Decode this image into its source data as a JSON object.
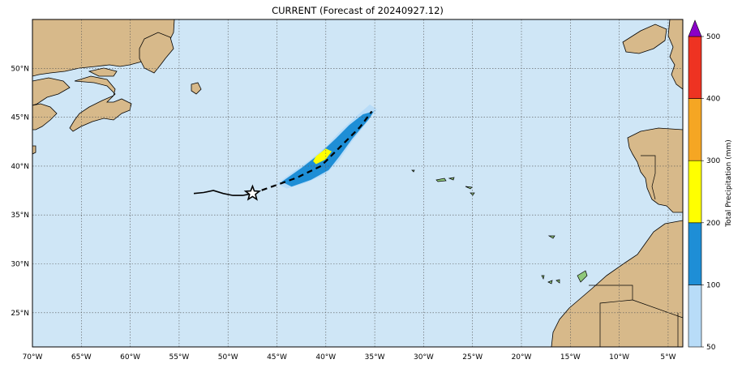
{
  "title": "CURRENT (Forecast of 20240927.12)",
  "map": {
    "lon_range": [
      -70,
      -3.5
    ],
    "lat_range": [
      21.5,
      55
    ],
    "lon_ticks": [
      {
        "value": -70,
        "label": "70°W"
      },
      {
        "value": -65,
        "label": "65°W"
      },
      {
        "value": -60,
        "label": "60°W"
      },
      {
        "value": -55,
        "label": "55°W"
      },
      {
        "value": -50,
        "label": "50°W"
      },
      {
        "value": -45,
        "label": "45°W"
      },
      {
        "value": -40,
        "label": "40°W"
      },
      {
        "value": -35,
        "label": "35°W"
      },
      {
        "value": -30,
        "label": "30°W"
      },
      {
        "value": -25,
        "label": "25°W"
      },
      {
        "value": -20,
        "label": "20°W"
      },
      {
        "value": -15,
        "label": "15°W"
      },
      {
        "value": -10,
        "label": "10°W"
      },
      {
        "value": -5,
        "label": "5°W"
      }
    ],
    "lat_ticks": [
      {
        "value": 25,
        "label": "25°N"
      },
      {
        "value": 30,
        "label": "30°N"
      },
      {
        "value": 35,
        "label": "35°N"
      },
      {
        "value": 40,
        "label": "40°N"
      },
      {
        "value": 45,
        "label": "45°N"
      },
      {
        "value": 50,
        "label": "50°N"
      }
    ],
    "grid": true,
    "colors": {
      "ocean": "#cfe6f6",
      "land": "#d7b98a",
      "land_green": "#8fc77a",
      "coast": "#000000"
    },
    "past_track": [
      [
        -53.5,
        37.2
      ],
      [
        -52.5,
        37.3
      ],
      [
        -51.5,
        37.5
      ],
      [
        -50.5,
        37.2
      ],
      [
        -49.5,
        37.0
      ],
      [
        -48.5,
        37.0
      ],
      [
        -47.5,
        37.2
      ]
    ],
    "forecast_track": [
      [
        -47.5,
        37.2
      ],
      [
        -45.5,
        37.9
      ],
      [
        -43,
        38.8
      ],
      [
        -40.5,
        40.0
      ],
      [
        -38.5,
        42.0
      ],
      [
        -36.5,
        44.0
      ],
      [
        -35.3,
        45.6
      ]
    ],
    "storm_position": [
      -47.5,
      37.2
    ],
    "precip_swath": {
      "50-100": [
        [
          -44,
          37.7
        ],
        [
          -42,
          38.3
        ],
        [
          -40,
          39.2
        ],
        [
          -38.7,
          40.5
        ],
        [
          -37.5,
          42.3
        ],
        [
          -36,
          44.2
        ],
        [
          -34.8,
          45.8
        ],
        [
          -35.5,
          46.3
        ],
        [
          -37,
          45
        ],
        [
          -38.6,
          43.5
        ],
        [
          -40,
          42
        ],
        [
          -41.5,
          40.7
        ],
        [
          -43.5,
          39.3
        ],
        [
          -45,
          38.2
        ]
      ],
      "100-200": [
        [
          -43.5,
          37.9
        ],
        [
          -41.5,
          38.6
        ],
        [
          -39.7,
          39.6
        ],
        [
          -38.6,
          41
        ],
        [
          -37.3,
          42.8
        ],
        [
          -35.6,
          44.8
        ],
        [
          -35.1,
          45.6
        ],
        [
          -36.2,
          45.3
        ],
        [
          -37.6,
          44.2
        ],
        [
          -39,
          42.8
        ],
        [
          -40.7,
          41.2
        ],
        [
          -42.5,
          39.8
        ],
        [
          -44.5,
          38.4
        ]
      ],
      "200-300": [
        [
          -41,
          40.2
        ],
        [
          -40,
          40.7
        ],
        [
          -39.4,
          41.5
        ],
        [
          -40,
          41.8
        ],
        [
          -41,
          41
        ],
        [
          -41.3,
          40.5
        ]
      ]
    }
  },
  "colorbar": {
    "label": "Total Precipitation (mm)",
    "levels": [
      50,
      100,
      200,
      300,
      400,
      500
    ],
    "colors": [
      "#b8dcf8",
      "#1e8ed6",
      "#ffff00",
      "#f5a623",
      "#ee3322"
    ],
    "extend_color": "#8a00c8"
  }
}
